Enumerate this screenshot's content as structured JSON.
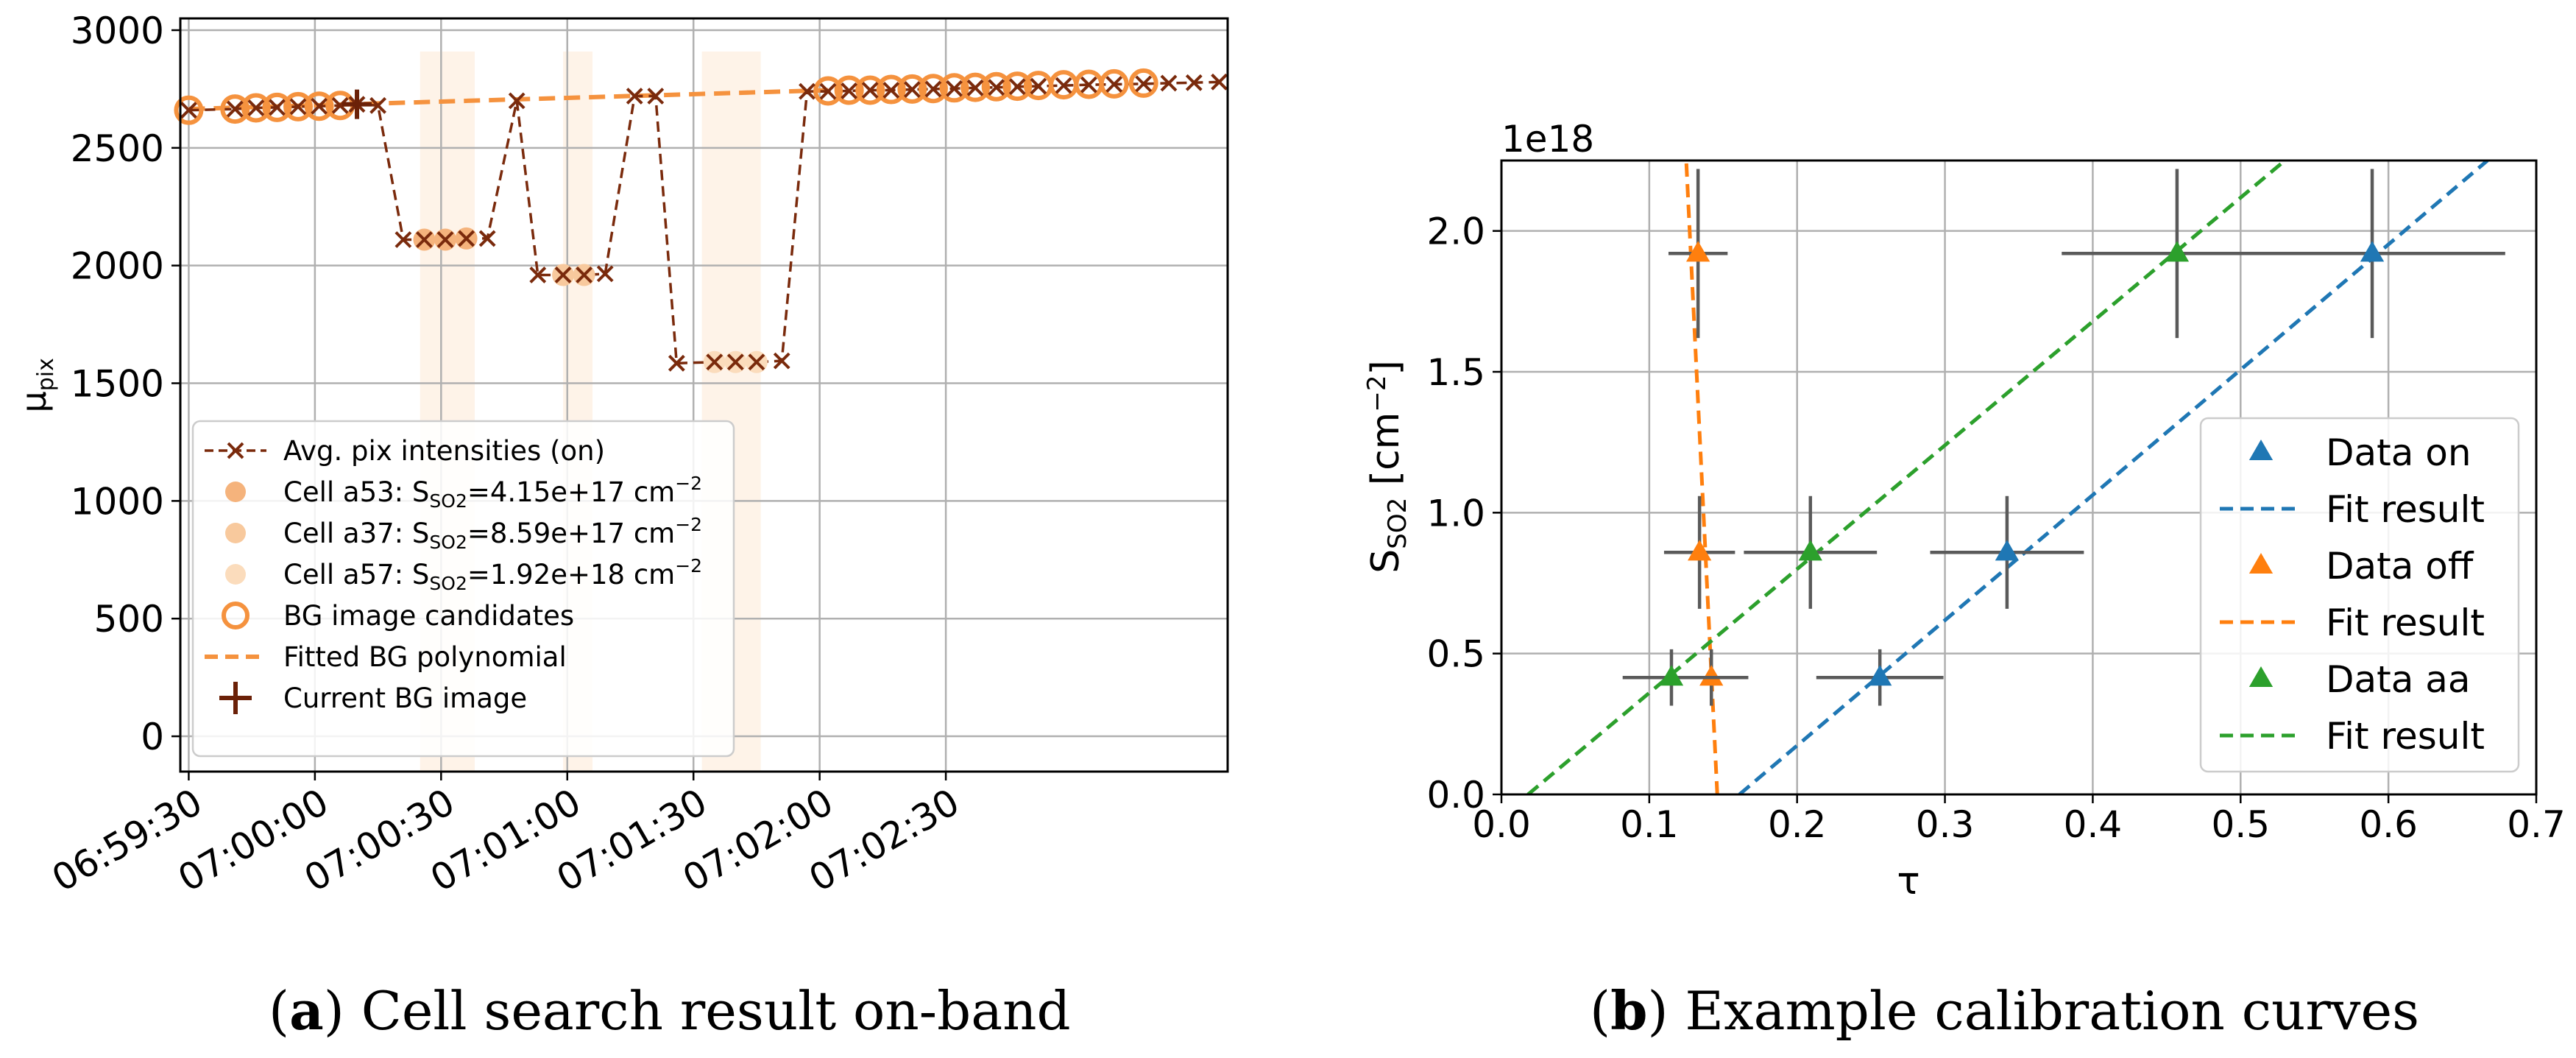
{
  "chart_data": [
    {
      "type": "line",
      "ylabel": "μ",
      "ylabel_sub": "pix",
      "yticks": [
        0,
        500,
        1000,
        1500,
        2000,
        2500,
        3000
      ],
      "ylim": [
        -150,
        3050
      ],
      "xlim_seconds": [
        -2,
        247
      ],
      "xticks": [
        {
          "t": 0,
          "label": "06:59:30"
        },
        {
          "t": 30,
          "label": "07:00:00"
        },
        {
          "t": 60,
          "label": "07:00:30"
        },
        {
          "t": 90,
          "label": "07:01:00"
        },
        {
          "t": 120,
          "label": "07:01:30"
        },
        {
          "t": 150,
          "label": "07:02:00"
        },
        {
          "t": 180,
          "label": "07:02:30"
        }
      ],
      "x_origin_time": "06:59:30",
      "grid": true,
      "shaded_regions": [
        {
          "x0": 55,
          "x1": 68
        },
        {
          "x0": 89,
          "x1": 96
        },
        {
          "x0": 122,
          "x1": 136
        }
      ],
      "series": [
        {
          "name": "Avg. pix intensities (on)",
          "style": "dashed-x",
          "color": "#7a2a0c",
          "x": [
            0,
            11,
            16,
            21,
            26,
            31,
            36,
            40,
            45,
            51,
            56,
            61,
            66,
            71,
            78,
            83,
            89,
            94,
            99,
            106,
            111,
            116,
            125,
            130,
            135,
            141,
            147,
            152,
            157,
            162,
            167,
            172,
            177,
            182,
            187,
            192,
            197,
            202,
            208,
            214,
            220,
            227,
            233,
            239,
            245
          ],
          "y": [
            2660,
            2665,
            2670,
            2672,
            2675,
            2677,
            2680,
            2685,
            2680,
            2110,
            2110,
            2110,
            2115,
            2115,
            2700,
            1960,
            1960,
            1960,
            1965,
            2720,
            2720,
            1585,
            1590,
            1590,
            1590,
            1595,
            2740,
            2740,
            2742,
            2745,
            2745,
            2748,
            2750,
            2752,
            2755,
            2757,
            2760,
            2762,
            2765,
            2768,
            2770,
            2772,
            2775,
            2777,
            2780
          ]
        },
        {
          "name": "Cell a53",
          "legend_text": "Cell a53: S",
          "legend_sub": "SO2",
          "legend_value": "=4.15e+17 cm",
          "legend_sup": "−2",
          "color": "#f5b37c",
          "x": [
            56,
            61,
            66
          ],
          "y": [
            2110,
            2110,
            2115
          ]
        },
        {
          "name": "Cell a37",
          "legend_text": "Cell a37: S",
          "legend_sub": "SO2",
          "legend_value": "=8.59e+17 cm",
          "legend_sup": "−2",
          "color": "#f8c99d",
          "x": [
            89,
            94
          ],
          "y": [
            1960,
            1960
          ]
        },
        {
          "name": "Cell a57",
          "legend_text": "Cell a57: S",
          "legend_sub": "SO2",
          "legend_value": "=1.92e+18 cm",
          "legend_sup": "−2",
          "color": "#fbdcbc",
          "x": [
            125,
            130,
            135
          ],
          "y": [
            1590,
            1590,
            1590
          ]
        },
        {
          "name": "BG image candidates",
          "color": "#f5923e",
          "x": [
            0,
            11,
            16,
            21,
            26,
            31,
            36,
            152,
            157,
            162,
            167,
            172,
            177,
            182,
            187,
            192,
            197,
            202,
            208,
            214,
            220,
            227
          ],
          "y": [
            2660,
            2665,
            2670,
            2672,
            2675,
            2677,
            2680,
            2742,
            2745,
            2745,
            2748,
            2750,
            2752,
            2755,
            2757,
            2760,
            2762,
            2765,
            2768,
            2770,
            2772,
            2775
          ]
        },
        {
          "name": "Fitted BG polynomial",
          "style": "dashed",
          "color": "#f5923e",
          "x": [
            0,
            152
          ],
          "y": [
            2665,
            2745
          ]
        },
        {
          "name": "Current BG image",
          "color": "#6b2108",
          "x": [
            40
          ],
          "y": [
            2685
          ]
        }
      ]
    },
    {
      "type": "scatter",
      "xlabel": "τ",
      "ylabel": "S",
      "ylabel_sub": "SO2",
      "ylabel_rest": " [cm",
      "ylabel_sup": "−2",
      "ylabel_end": "]",
      "offset_text": "1e18",
      "xlim": [
        0,
        0.7
      ],
      "ylim": [
        0,
        2.25
      ],
      "xticks": [
        0.0,
        0.1,
        0.2,
        0.3,
        0.4,
        0.5,
        0.6,
        0.7
      ],
      "yticks": [
        0.0,
        0.5,
        1.0,
        1.5,
        2.0
      ],
      "xtick_labels": [
        "0.0",
        "0.1",
        "0.2",
        "0.3",
        "0.4",
        "0.5",
        "0.6",
        "0.7"
      ],
      "ytick_labels": [
        "0.0",
        "0.5",
        "1.0",
        "1.5",
        "2.0"
      ],
      "grid": true,
      "legend_position": "lower-right",
      "series": [
        {
          "name": "Data on",
          "color": "#1f77b4",
          "x": [
            0.256,
            0.342,
            0.589
          ],
          "y": [
            0.415,
            0.859,
            1.92
          ],
          "xerr": [
            0.043,
            0.052,
            0.09
          ],
          "yerr": [
            0.1,
            0.2,
            0.3
          ]
        },
        {
          "name": "Fit result",
          "color": "#1f77b4",
          "line": [
            [
              0.161,
              0
            ],
            [
              0.667,
              2.25
            ]
          ]
        },
        {
          "name": "Data off",
          "color": "#ff7f0e",
          "x": [
            0.142,
            0.134,
            0.133
          ],
          "y": [
            0.415,
            0.859,
            1.92
          ],
          "xerr": [
            0.025,
            0.024,
            0.02
          ],
          "yerr": [
            0.1,
            0.2,
            0.3
          ]
        },
        {
          "name": "Fit result",
          "color": "#ff7f0e",
          "line": [
            [
              0.146,
              0
            ],
            [
              0.125,
              2.25
            ]
          ]
        },
        {
          "name": "Data aa",
          "color": "#2ca02c",
          "x": [
            0.115,
            0.209,
            0.457
          ],
          "y": [
            0.415,
            0.859,
            1.92
          ],
          "xerr": [
            0.033,
            0.045,
            0.078
          ],
          "yerr": [
            0.1,
            0.2,
            0.3
          ]
        },
        {
          "name": "Fit result",
          "color": "#2ca02c",
          "line": [
            [
              0.018,
              0
            ],
            [
              0.53,
              2.25
            ]
          ]
        }
      ],
      "errorbar_color": "#5a5a5a"
    }
  ],
  "captions": [
    {
      "letter": "a",
      "text": "Cell search result on-band"
    },
    {
      "letter": "b",
      "text": "Example calibration curves"
    }
  ]
}
